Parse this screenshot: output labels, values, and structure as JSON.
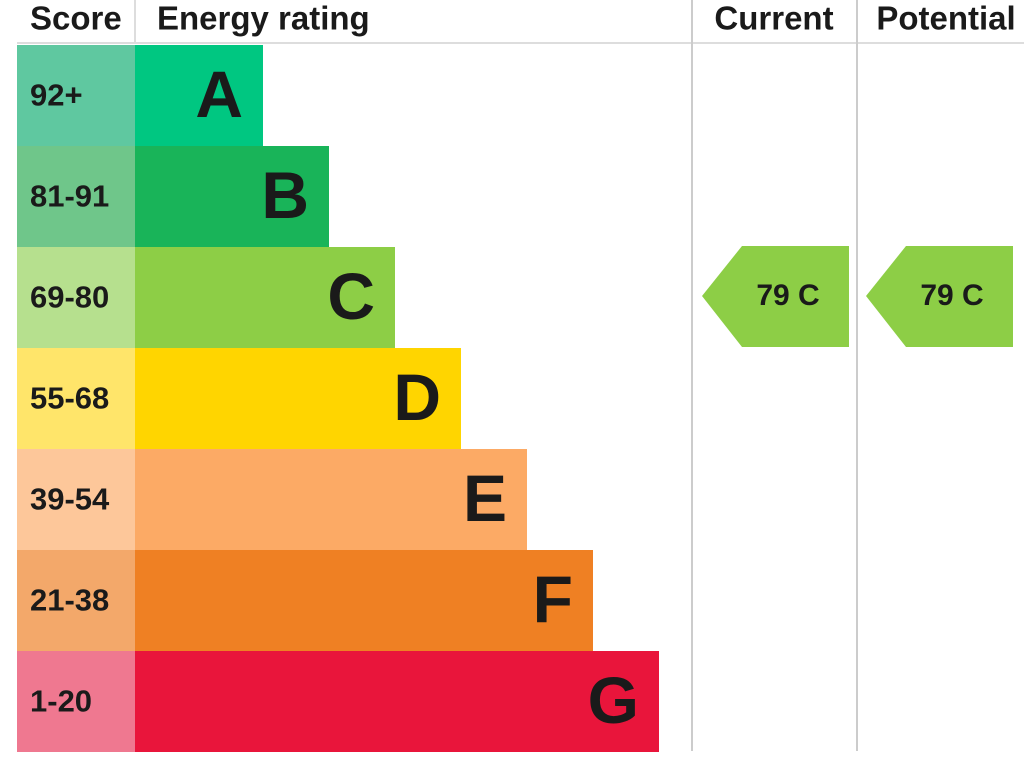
{
  "header": {
    "score": "Score",
    "rating": "Energy rating",
    "current": "Current",
    "potential": "Potential"
  },
  "rows": [
    {
      "score": "92+",
      "letter": "A"
    },
    {
      "score": "81-91",
      "letter": "B"
    },
    {
      "score": "69-80",
      "letter": "C"
    },
    {
      "score": "55-68",
      "letter": "D"
    },
    {
      "score": "39-54",
      "letter": "E"
    },
    {
      "score": "21-38",
      "letter": "F"
    },
    {
      "score": "1-20",
      "letter": "G"
    }
  ],
  "current": "79 C",
  "potential": "79 C"
}
